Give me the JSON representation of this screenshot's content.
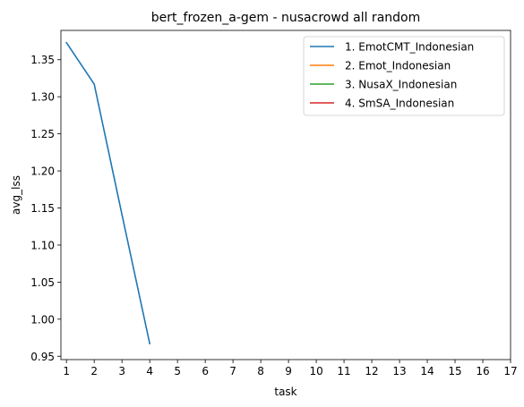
{
  "chart_data": {
    "type": "line",
    "title": "bert_frozen_a-gem - nusacrowd all random",
    "xlabel": "task",
    "ylabel": "avg_lss",
    "xlim": [
      0.8,
      17
    ],
    "ylim": [
      0.9455,
      1.3895
    ],
    "xticks": [
      "1",
      "2",
      "3",
      "4",
      "5",
      "6",
      "7",
      "8",
      "9",
      "10",
      "11",
      "12",
      "13",
      "14",
      "15",
      "16",
      "17"
    ],
    "yticks": [
      "0.95",
      "1.00",
      "1.05",
      "1.10",
      "1.15",
      "1.20",
      "1.25",
      "1.30",
      "1.35"
    ],
    "grid": false,
    "legend_position": "top-right",
    "series": [
      {
        "name": "1. EmotCMT_Indonesian",
        "color": "#1f77b4",
        "x": [
          1,
          2,
          3,
          4
        ],
        "y": [
          1.373,
          1.317,
          1.141,
          0.967
        ]
      },
      {
        "name": "2. Emot_Indonesian",
        "color": "#ff7f0e",
        "x": [],
        "y": []
      },
      {
        "name": "3. NusaX_Indonesian",
        "color": "#2ca02c",
        "x": [],
        "y": []
      },
      {
        "name": "4. SmSA_Indonesian",
        "color": "#d62728",
        "x": [],
        "y": []
      }
    ]
  }
}
